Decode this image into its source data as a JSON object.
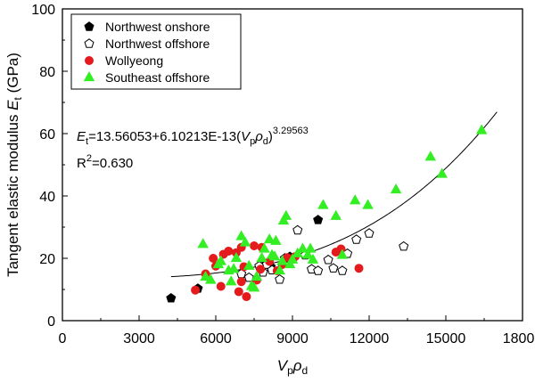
{
  "chart_data": {
    "type": "scatter",
    "ylabel": {
      "main": "Tangent elastic modulus ",
      "var": "E",
      "sub": "t",
      "unit": " (GPa)"
    },
    "xlabel": {
      "v": "V",
      "vsub": "p",
      "rho": "ρ",
      "rhosub": "d"
    },
    "xlim": [
      0,
      18000
    ],
    "ylim": [
      0,
      100
    ],
    "x_ticks": [
      0,
      3000,
      6000,
      9000,
      12000,
      15000,
      18000
    ],
    "y_ticks": [
      0,
      20,
      40,
      60,
      80,
      100
    ],
    "legend_position": "top-left",
    "grid": false,
    "series": [
      {
        "name": "Northwest onshore",
        "marker": "pentagon",
        "fill": "#000000",
        "stroke": "#000000",
        "points": [
          [
            4250,
            7.2
          ],
          [
            5300,
            10.3
          ],
          [
            7950,
            18.0
          ],
          [
            8150,
            17.3
          ],
          [
            8900,
            20.5
          ],
          [
            10000,
            32.3
          ]
        ]
      },
      {
        "name": "Northwest offshore",
        "marker": "pentagon",
        "fill": "#ffffff",
        "stroke": "#000000",
        "points": [
          [
            7000,
            15.0
          ],
          [
            7300,
            13.8
          ],
          [
            7700,
            17.5
          ],
          [
            7850,
            15.5
          ],
          [
            8000,
            18.0
          ],
          [
            8200,
            16.2
          ],
          [
            8500,
            13.2
          ],
          [
            8700,
            20.0
          ],
          [
            9200,
            29.0
          ],
          [
            9500,
            21.0
          ],
          [
            9750,
            16.5
          ],
          [
            10000,
            16.0
          ],
          [
            10400,
            19.5
          ],
          [
            10600,
            16.8
          ],
          [
            10950,
            16.0
          ],
          [
            11150,
            21.5
          ],
          [
            11500,
            26.0
          ],
          [
            12000,
            28.0
          ],
          [
            13350,
            23.8
          ]
        ]
      },
      {
        "name": "Wollyeong",
        "marker": "circle",
        "fill": "#e41a1c",
        "stroke": "#e41a1c",
        "points": [
          [
            5200,
            9.8
          ],
          [
            5600,
            15.0
          ],
          [
            5900,
            20.0
          ],
          [
            6200,
            11.0
          ],
          [
            6300,
            21.3
          ],
          [
            6500,
            22.3
          ],
          [
            6800,
            21.8
          ],
          [
            6900,
            9.3
          ],
          [
            7000,
            12.5
          ],
          [
            7100,
            17.3
          ],
          [
            7200,
            7.7
          ],
          [
            7500,
            24.0
          ],
          [
            7600,
            13.0
          ],
          [
            7750,
            16.5
          ],
          [
            7800,
            23.5
          ],
          [
            8100,
            19.0
          ],
          [
            8400,
            16.0
          ],
          [
            8600,
            18.0
          ],
          [
            8800,
            20.2
          ],
          [
            9100,
            20.5
          ],
          [
            10700,
            22.0
          ],
          [
            10900,
            23.0
          ],
          [
            11600,
            16.8
          ],
          [
            7000,
            23.5
          ],
          [
            6000,
            17.5
          ]
        ]
      },
      {
        "name": "Southeast offshore",
        "marker": "triangle",
        "fill": "#33ee22",
        "stroke": "#33ee22",
        "points": [
          [
            5500,
            24.5
          ],
          [
            5600,
            14.0
          ],
          [
            5800,
            13.0
          ],
          [
            6100,
            18.0
          ],
          [
            6200,
            19.0
          ],
          [
            6500,
            16.0
          ],
          [
            6800,
            20.0
          ],
          [
            7000,
            27.0
          ],
          [
            7150,
            25.0
          ],
          [
            7300,
            17.5
          ],
          [
            7400,
            11.0
          ],
          [
            7500,
            10.5
          ],
          [
            7600,
            14.0
          ],
          [
            7800,
            20.0
          ],
          [
            7900,
            23.0
          ],
          [
            8100,
            26.0
          ],
          [
            8300,
            20.5
          ],
          [
            8350,
            25.5
          ],
          [
            8500,
            16.0
          ],
          [
            8650,
            32.0
          ],
          [
            8750,
            33.5
          ],
          [
            8900,
            18.0
          ],
          [
            9000,
            19.5
          ],
          [
            9200,
            21.5
          ],
          [
            9400,
            23.0
          ],
          [
            9600,
            21.0
          ],
          [
            9700,
            23.0
          ],
          [
            10200,
            37.0
          ],
          [
            10700,
            33.5
          ],
          [
            10950,
            21.0
          ],
          [
            11450,
            38.5
          ],
          [
            11950,
            37.0
          ],
          [
            13050,
            42.0
          ],
          [
            14400,
            52.5
          ],
          [
            14850,
            47.0
          ],
          [
            16400,
            61.0
          ],
          [
            8200,
            21.0
          ],
          [
            8600,
            19.0
          ],
          [
            9800,
            19.5
          ],
          [
            6700,
            16.5
          ],
          [
            6600,
            12.5
          ]
        ]
      }
    ],
    "fit_curve": {
      "a": 13.56053,
      "b": 6.10213e-13,
      "n": 3.29563,
      "x_from": 4250,
      "x_to": 17000
    },
    "annotation": {
      "eq_prefix": "E",
      "eq_prefix_sub": "t",
      "eq_middle": "=13.56053+6.10213E-13(",
      "eq_v": "V",
      "eq_vsub": "p",
      "eq_rho": "ρ",
      "eq_rhosub": "d",
      "eq_close": ")",
      "eq_exp": "3.29563",
      "r2_label": "R",
      "r2_sup": "2",
      "r2_value": "=0.630"
    }
  }
}
